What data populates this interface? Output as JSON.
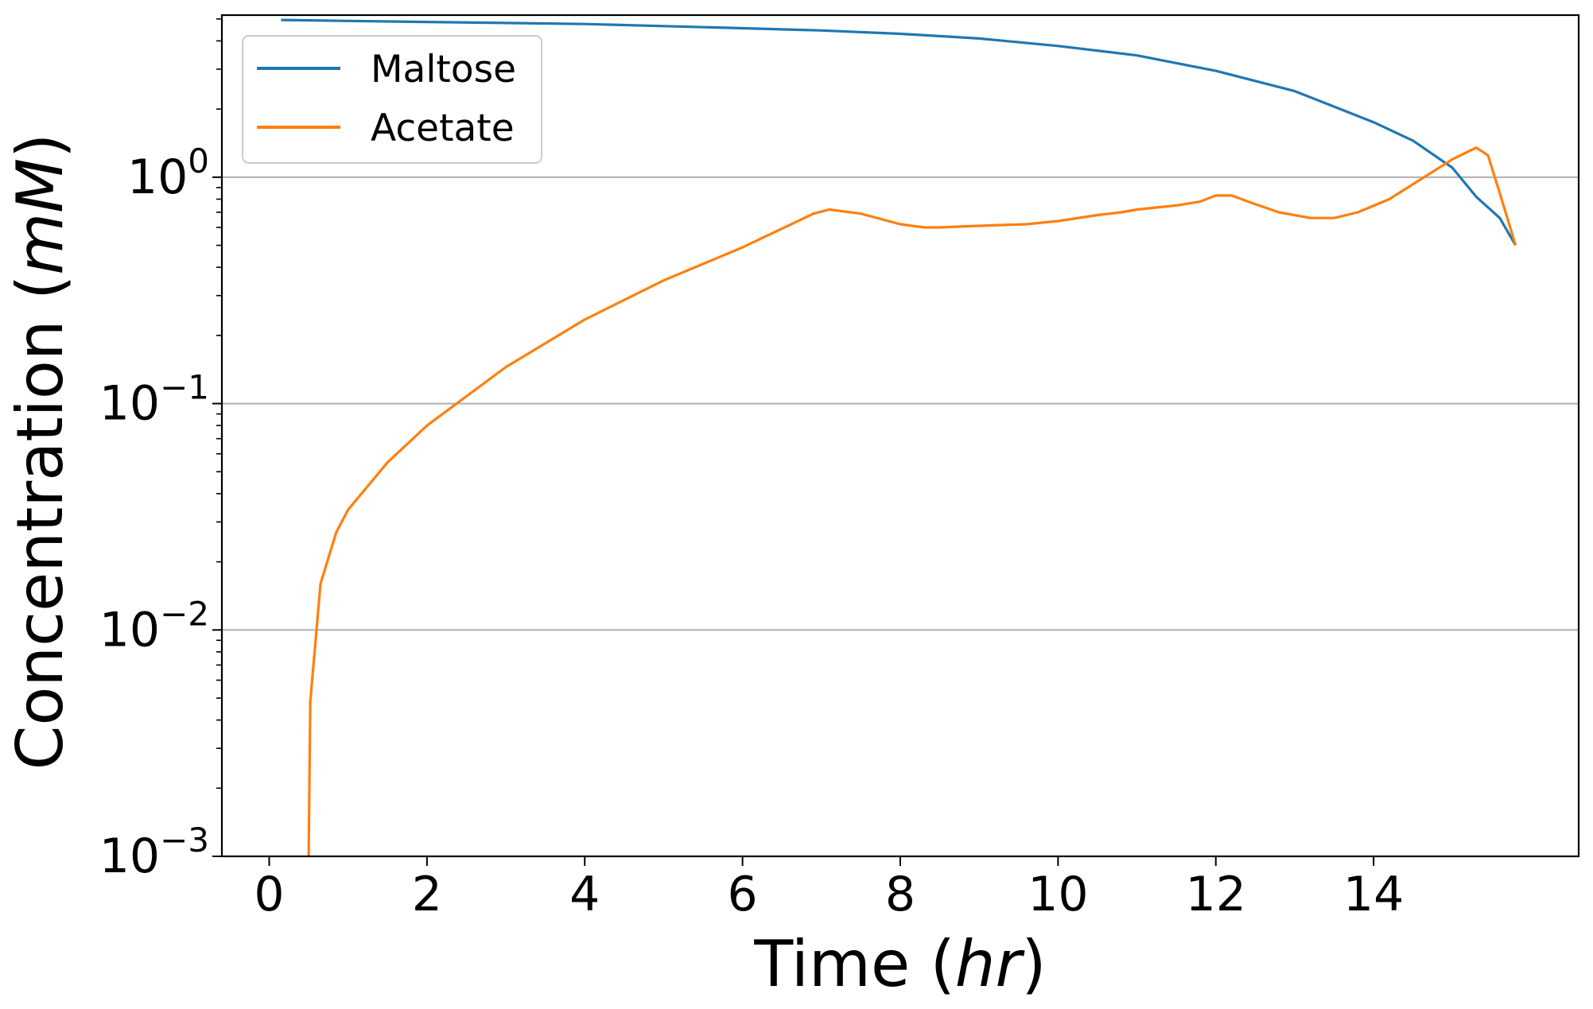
{
  "chart_data": {
    "type": "line",
    "title": "",
    "xlabel": {
      "text": "Time",
      "unit": "hr"
    },
    "ylabel": {
      "text": "Concentration",
      "unit": "mM"
    },
    "xlim": [
      -0.6,
      16.6
    ],
    "ylim": [
      0.001,
      5.2
    ],
    "yscale": "log",
    "grid": "y-major",
    "legend_position": "top-left",
    "x_ticks": [
      "0",
      "2",
      "4",
      "6",
      "8",
      "10",
      "12",
      "14"
    ],
    "y_ticks": [
      {
        "base": "10",
        "exp": "0"
      },
      {
        "base": "10",
        "exp": "−1"
      },
      {
        "base": "10",
        "exp": "−2"
      },
      {
        "base": "10",
        "exp": "−3"
      }
    ],
    "series": [
      {
        "name": "Maltose",
        "color": "#1f77b4",
        "x": [
          0.15,
          1,
          2,
          3,
          4,
          5,
          6,
          7,
          8,
          9,
          10,
          11,
          12,
          13,
          13.5,
          14,
          14.5,
          15,
          15.3,
          15.6,
          15.8
        ],
        "y": [
          4.95,
          4.9,
          4.85,
          4.8,
          4.75,
          4.65,
          4.55,
          4.45,
          4.3,
          4.1,
          3.8,
          3.45,
          2.95,
          2.4,
          2.05,
          1.75,
          1.45,
          1.1,
          0.82,
          0.66,
          0.5
        ]
      },
      {
        "name": "Acetate",
        "color": "#ff7f0e",
        "x": [
          0.5,
          0.52,
          0.65,
          0.85,
          1.0,
          1.5,
          2.0,
          3.0,
          4.0,
          5.0,
          6.0,
          6.9,
          7.1,
          7.5,
          8.0,
          8.3,
          8.5,
          9.0,
          9.6,
          10.0,
          10.5,
          10.8,
          11.0,
          11.5,
          11.8,
          12.0,
          12.2,
          12.5,
          12.8,
          13.2,
          13.5,
          13.8,
          14.2,
          14.6,
          15.0,
          15.3,
          15.45,
          15.6,
          15.8
        ],
        "y": [
          0.001,
          0.0048,
          0.016,
          0.027,
          0.034,
          0.055,
          0.08,
          0.145,
          0.235,
          0.35,
          0.49,
          0.69,
          0.72,
          0.69,
          0.62,
          0.6,
          0.6,
          0.61,
          0.62,
          0.64,
          0.68,
          0.7,
          0.72,
          0.75,
          0.78,
          0.83,
          0.83,
          0.76,
          0.7,
          0.66,
          0.66,
          0.7,
          0.8,
          0.98,
          1.2,
          1.35,
          1.25,
          0.85,
          0.5
        ]
      }
    ]
  }
}
